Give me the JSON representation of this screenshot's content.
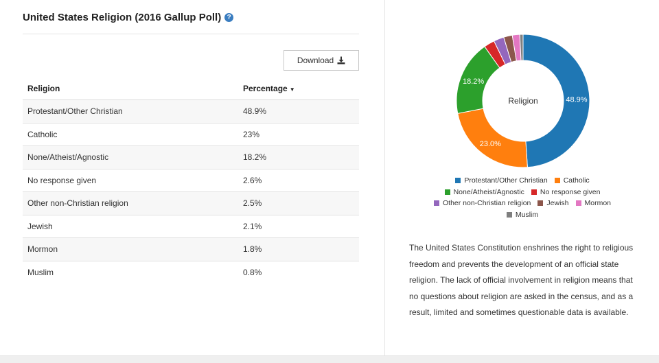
{
  "title": "United States Religion (2016 Gallup Poll)",
  "help_glyph": "?",
  "download": {
    "label": "Download",
    "icon": "download-icon"
  },
  "table": {
    "headers": [
      "Religion",
      "Percentage"
    ],
    "sort_indicator": "caret-down-icon",
    "rows": [
      [
        "Protestant/Other Christian",
        "48.9%"
      ],
      [
        "Catholic",
        "23%"
      ],
      [
        "None/Atheist/Agnostic",
        "18.2%"
      ],
      [
        "No response given",
        "2.6%"
      ],
      [
        "Other non-Christian religion",
        "2.5%"
      ],
      [
        "Jewish",
        "2.1%"
      ],
      [
        "Mormon",
        "1.8%"
      ],
      [
        "Muslim",
        "0.8%"
      ]
    ]
  },
  "chart_data": {
    "type": "pie",
    "center_label": "Religion",
    "categories": [
      "Protestant/Other Christian",
      "Catholic",
      "None/Atheist/Agnostic",
      "No response given",
      "Other non-Christian religion",
      "Jewish",
      "Mormon",
      "Muslim"
    ],
    "values": [
      48.9,
      23.0,
      18.2,
      2.6,
      2.5,
      2.1,
      1.8,
      0.8
    ],
    "data_labels": [
      "48.9%",
      "23.0%",
      "18.2%",
      "",
      "",
      "",
      "",
      ""
    ],
    "colors": [
      "#1f77b4",
      "#ff7f0e",
      "#2ca02c",
      "#d62728",
      "#9467bd",
      "#8c564b",
      "#e377c2",
      "#7f7f7f"
    ],
    "legend_placement": "bottom"
  },
  "description": "The United States Constitution enshrines the right to religious freedom and prevents the development of an official state religion. The lack of official involvement in religion means that no questions about religion are asked in the census, and as a result, limited and sometimes questionable data is available."
}
